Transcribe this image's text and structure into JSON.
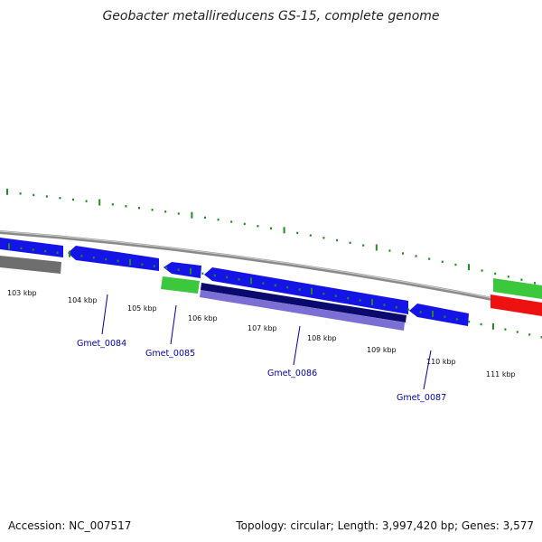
{
  "title": "Geobacter metallireducens GS-15, complete genome",
  "accession_text": "Accession: NC_007517",
  "summary_text": "Topology: circular; Length: 3,997,420 bp; Genes: 3,577",
  "colors": {
    "forward_gene": "#1414e6",
    "reverse_gene": "#1414e6",
    "dark_blue_feature": "#0a0a6e",
    "light_purple_feature": "#7b6fd6",
    "green_feature": "#3cc83c",
    "red_feature": "#ee1111",
    "gray_feature": "#6e6e6e",
    "backbone": "#8a8a8a",
    "tick": "#228b22",
    "gene_label": "#0000aa"
  },
  "ruler": {
    "labels": [
      "103 kbp",
      "104 kbp",
      "105 kbp",
      "106 kbp",
      "107 kbp",
      "108 kbp",
      "109 kbp",
      "110 kbp",
      "111 kbp"
    ]
  },
  "gene_labels": [
    "Gmet_0084",
    "Gmet_0085",
    "Gmet_0086",
    "Gmet_0087"
  ]
}
